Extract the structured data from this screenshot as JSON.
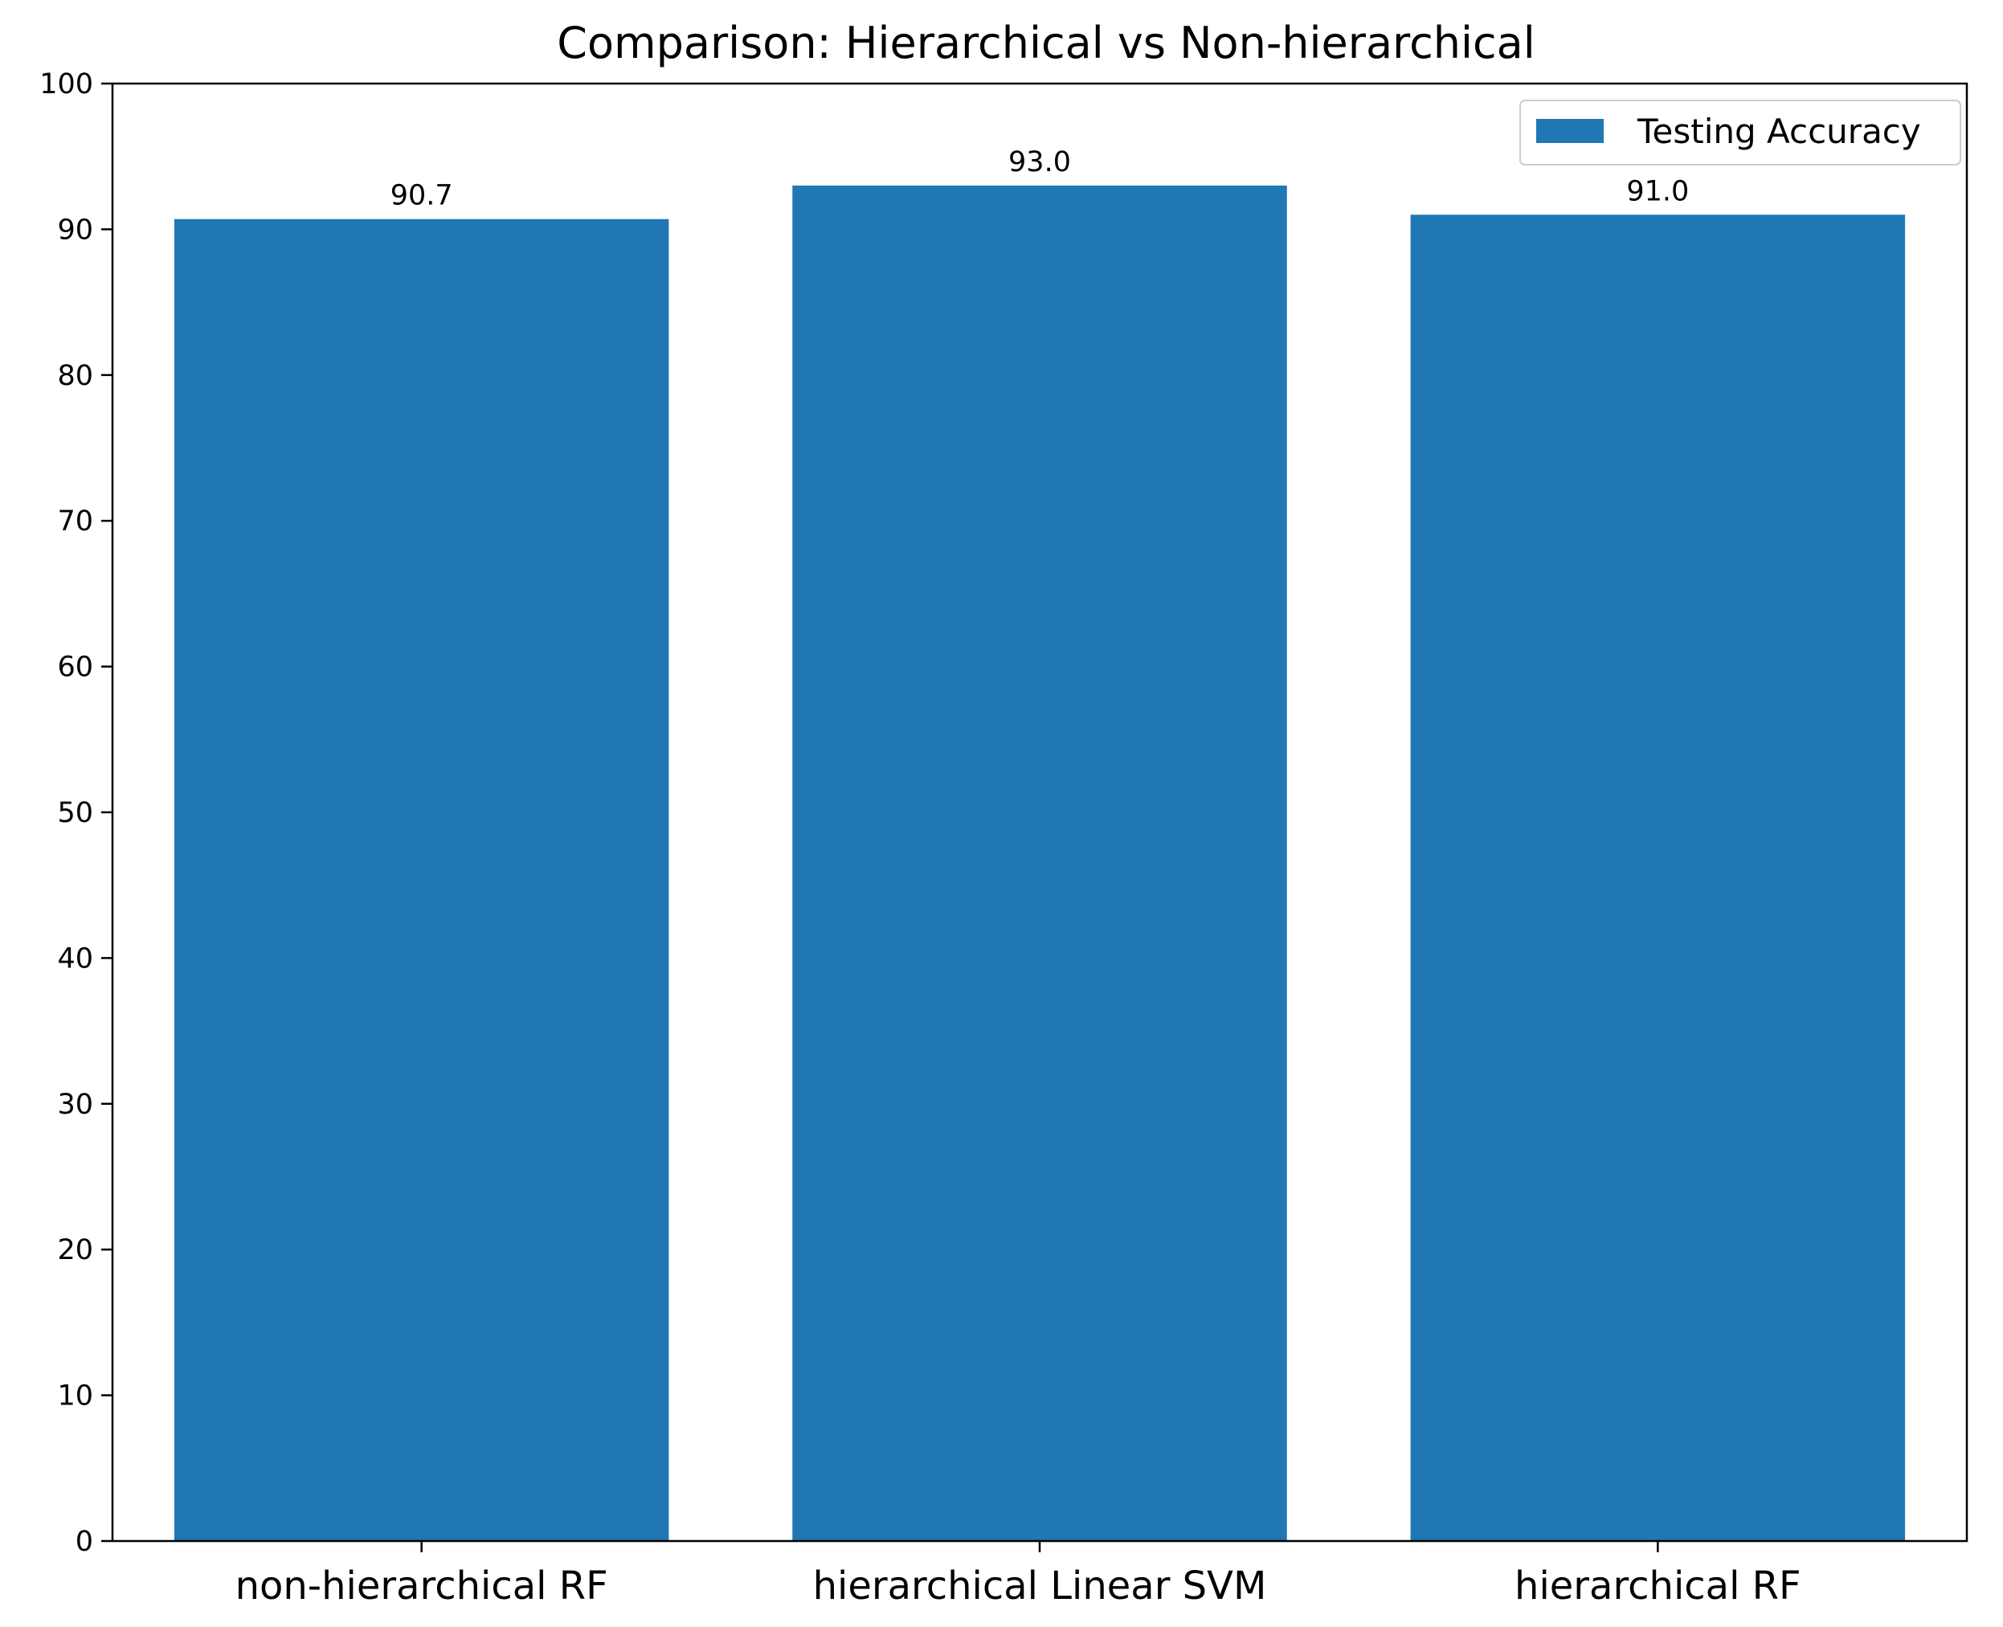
{
  "chart_data": {
    "type": "bar",
    "title": "Comparison: Hierarchical vs Non-hierarchical",
    "xlabel": "",
    "ylabel": "",
    "categories": [
      "non-hierarchical RF",
      "hierarchical Linear SVM",
      "hierarchical RF"
    ],
    "series": [
      {
        "name": "Testing Accuracy",
        "values": [
          90.7,
          93.0,
          91.0
        ],
        "labels": [
          "90.7",
          "93.0",
          "91.0"
        ],
        "color": "#1f77b4"
      }
    ],
    "ylim": [
      0,
      100
    ],
    "yticks": [
      0,
      10,
      20,
      30,
      40,
      50,
      60,
      70,
      80,
      90,
      100
    ],
    "ytick_labels": [
      "0",
      "10",
      "20",
      "30",
      "40",
      "50",
      "60",
      "70",
      "80",
      "90",
      "100"
    ],
    "grid": false,
    "legend_position": "top-right"
  }
}
